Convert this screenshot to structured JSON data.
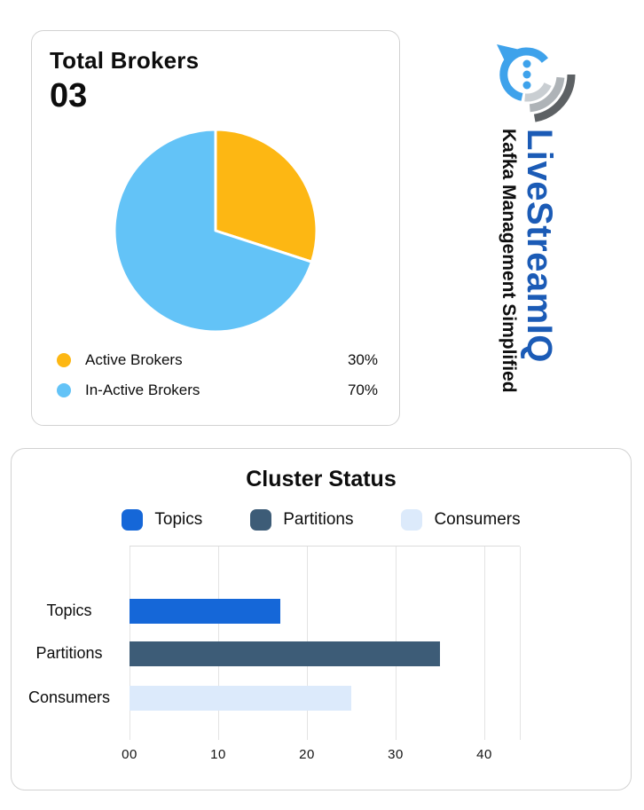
{
  "brokers_card": {
    "title": "Total Brokers",
    "count": "03"
  },
  "brand": {
    "name": "LiveStreamIQ",
    "tagline": "Kafka Management Simplified",
    "name_color": "#1B5BB6",
    "logo": {
      "bubble_blue": "#3EA2EB",
      "arc_light": "#C9CED2",
      "arc_mid": "#AEB3B7",
      "arc_dark": "#5D6164"
    }
  },
  "cluster_card": {
    "title": "Cluster Status"
  },
  "chart_data": [
    {
      "type": "pie",
      "title": "Total Brokers",
      "labels": [
        "Active Brokers",
        "In-Active Brokers"
      ],
      "values": [
        30,
        70
      ],
      "unit": "%",
      "colors": [
        "#FDB713",
        "#63C3F7"
      ],
      "start_angle": "12 o'clock, clockwise",
      "legend_position": "bottom"
    },
    {
      "type": "bar",
      "orientation": "horizontal",
      "title": "Cluster Status",
      "categories": [
        "Topics",
        "Partitions",
        "Consumers"
      ],
      "values": [
        17,
        35,
        25
      ],
      "colors": [
        "#1567D8",
        "#3D5C77",
        "#DCEAFB"
      ],
      "xlim": [
        0,
        44
      ],
      "ticks": [
        0,
        10,
        20,
        30,
        40
      ],
      "tick_labels": [
        "00",
        "10",
        "20",
        "30",
        "40"
      ],
      "grid": true,
      "legend": [
        "Topics",
        "Partitions",
        "Consumers"
      ],
      "legend_position": "top"
    }
  ]
}
